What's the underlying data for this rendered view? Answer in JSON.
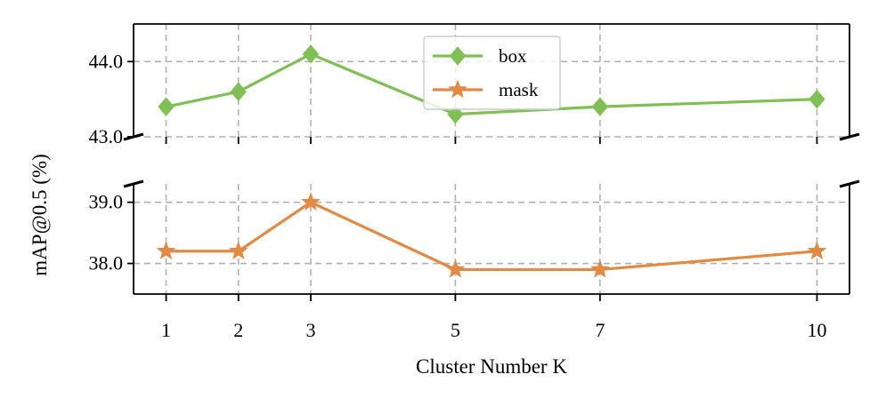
{
  "chart_data": {
    "type": "line",
    "xlabel": "Cluster Number K",
    "ylabel": "mAP@0.5 (%)",
    "x": [
      1,
      2,
      3,
      5,
      7,
      10
    ],
    "xticks": [
      "1",
      "2",
      "3",
      "5",
      "7",
      "10"
    ],
    "xlim": [
      0.55,
      10.45
    ],
    "grid": true,
    "legend_position": "top-center",
    "broken_y_axis": true,
    "panels": [
      {
        "ylim": [
          43.0,
          44.5
        ],
        "yticks": [
          "43.0",
          "44.0"
        ],
        "series": [
          {
            "name": "box",
            "marker": "diamond",
            "color": "#7fbf56",
            "values": [
              43.4,
              43.6,
              44.1,
              43.3,
              43.4,
              43.5
            ]
          }
        ]
      },
      {
        "ylim": [
          37.5,
          39.3
        ],
        "yticks": [
          "38.0",
          "39.0"
        ],
        "series": [
          {
            "name": "mask",
            "marker": "star",
            "color": "#e08a45",
            "values": [
              38.2,
              38.2,
              39.0,
              37.9,
              37.9,
              38.2
            ]
          }
        ]
      }
    ]
  }
}
